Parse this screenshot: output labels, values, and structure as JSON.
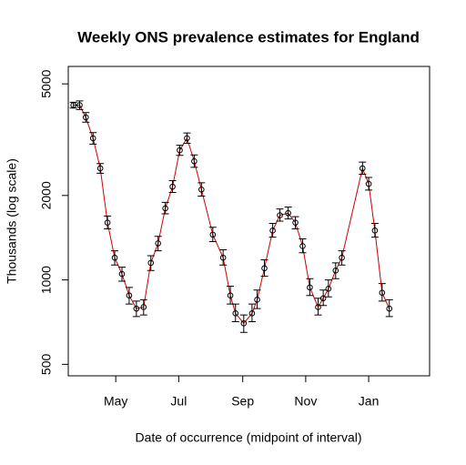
{
  "chart_data": {
    "type": "line",
    "title": "Weekly ONS prevalence estimates for England",
    "x_label": "Date of occurrence (midpoint of interval)",
    "y_label": "Thousands (log scale)",
    "log_y": true,
    "color": "#cc0000",
    "point_color": "#000000",
    "xlim": [
      -46,
      304
    ],
    "xticks": [
      {
        "value": 0,
        "label": "May"
      },
      {
        "value": 61,
        "label": "Jul"
      },
      {
        "value": 123,
        "label": "Sep"
      },
      {
        "value": 184,
        "label": "Nov"
      },
      {
        "value": 245,
        "label": "Jan"
      }
    ],
    "ylim": [
      455,
      5770
    ],
    "yticks": [
      500,
      1000,
      2000,
      5000
    ],
    "x": [
      -41,
      -35,
      -29,
      -22,
      -15,
      -8,
      -1,
      6,
      13,
      20,
      27,
      34,
      41,
      48,
      55,
      62,
      69,
      76,
      83,
      94,
      104,
      111,
      116,
      124,
      132,
      137,
      144,
      152,
      159,
      167,
      174,
      181,
      188,
      196,
      201,
      206,
      213,
      219,
      239,
      245,
      251,
      258,
      265
    ],
    "values": [
      4200,
      4200,
      3800,
      3200,
      2500,
      1600,
      1200,
      1050,
      880,
      790,
      800,
      1150,
      1350,
      1800,
      2150,
      2900,
      3200,
      2650,
      2100,
      1450,
      1200,
      880,
      760,
      700,
      760,
      850,
      1100,
      1500,
      1700,
      1730,
      1600,
      1320,
      940,
      800,
      860,
      930,
      1080,
      1200,
      2500,
      2200,
      1500,
      900,
      790
    ],
    "lower": [
      4100,
      4050,
      3650,
      3050,
      2400,
      1520,
      1130,
      990,
      820,
      740,
      750,
      1080,
      1270,
      1720,
      2050,
      2780,
      3070,
      2520,
      1990,
      1370,
      1130,
      820,
      710,
      650,
      710,
      790,
      1030,
      1420,
      1620,
      1650,
      1520,
      1250,
      880,
      750,
      810,
      870,
      1010,
      1130,
      2380,
      2090,
      1420,
      840,
      740
    ],
    "upper": [
      4300,
      4350,
      3950,
      3350,
      2600,
      1690,
      1270,
      1110,
      940,
      840,
      850,
      1220,
      1430,
      1890,
      2260,
      3020,
      3340,
      2790,
      2220,
      1540,
      1280,
      950,
      820,
      750,
      820,
      920,
      1180,
      1590,
      1790,
      1820,
      1680,
      1400,
      1010,
      860,
      920,
      1000,
      1150,
      1270,
      2630,
      2320,
      1590,
      970,
      850
    ]
  }
}
